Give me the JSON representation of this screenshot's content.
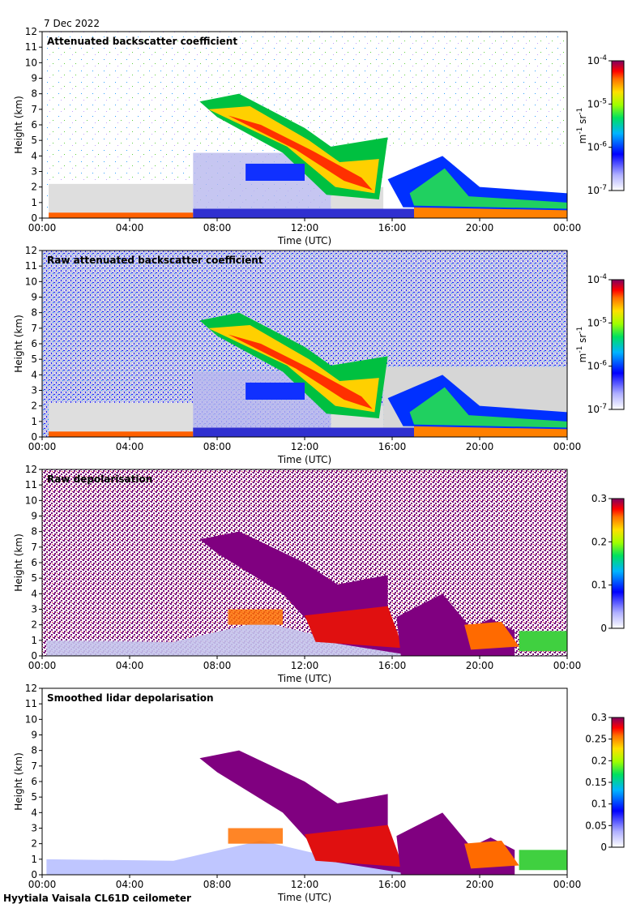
{
  "date_label": "7 Dec 2022",
  "footer_label": "Hyytiala Vaisala CL61D ceilometer",
  "chart_data": [
    {
      "type": "heatmap",
      "title": "Attenuated backscatter coefficient",
      "xlabel": "Time (UTC)",
      "ylabel": "Height (km)",
      "xticks": [
        "00:00",
        "04:00",
        "08:00",
        "12:00",
        "16:00",
        "20:00",
        "00:00"
      ],
      "xlim": [
        0,
        24
      ],
      "yticks": [
        0,
        1,
        2,
        3,
        4,
        5,
        6,
        7,
        8,
        9,
        10,
        11,
        12
      ],
      "ylim": [
        0,
        12
      ],
      "colorbar": {
        "scale": "log",
        "ticks": [
          {
            "base": "10",
            "exp": "-4"
          },
          {
            "base": "10",
            "exp": "-5"
          },
          {
            "base": "10",
            "exp": "-6"
          },
          {
            "base": "10",
            "exp": "-7"
          }
        ],
        "unit": "m^-1 sr^-1"
      }
    },
    {
      "type": "heatmap",
      "title": "Raw attenuated backscatter coefficient",
      "xlabel": "Time (UTC)",
      "ylabel": "Height (km)",
      "xticks": [
        "00:00",
        "04:00",
        "08:00",
        "12:00",
        "16:00",
        "20:00",
        "00:00"
      ],
      "xlim": [
        0,
        24
      ],
      "yticks": [
        0,
        1,
        2,
        3,
        4,
        5,
        6,
        7,
        8,
        9,
        10,
        11,
        12
      ],
      "ylim": [
        0,
        12
      ],
      "colorbar": {
        "scale": "log",
        "ticks": [
          {
            "base": "10",
            "exp": "-4"
          },
          {
            "base": "10",
            "exp": "-5"
          },
          {
            "base": "10",
            "exp": "-6"
          },
          {
            "base": "10",
            "exp": "-7"
          }
        ],
        "unit": "m^-1 sr^-1"
      }
    },
    {
      "type": "heatmap",
      "title": "Raw depolarisation",
      "xlabel": "Time (UTC)",
      "ylabel": "Height (km)",
      "xticks": [
        "00:00",
        "04:00",
        "08:00",
        "12:00",
        "16:00",
        "20:00",
        "00:00"
      ],
      "xlim": [
        0,
        24
      ],
      "yticks": [
        0,
        1,
        2,
        3,
        4,
        5,
        6,
        7,
        8,
        9,
        10,
        11,
        12
      ],
      "ylim": [
        0,
        12
      ],
      "colorbar": {
        "scale": "linear",
        "range": [
          0,
          0.3
        ],
        "ticks": [
          "0.3",
          "0.2",
          "0.1",
          "0"
        ],
        "unit": ""
      }
    },
    {
      "type": "heatmap",
      "title": "Smoothed lidar depolarisation",
      "xlabel": "Time (UTC)",
      "ylabel": "Height (km)",
      "xticks": [
        "00:00",
        "04:00",
        "08:00",
        "12:00",
        "16:00",
        "20:00",
        "00:00"
      ],
      "xlim": [
        0,
        24
      ],
      "yticks": [
        0,
        1,
        2,
        3,
        4,
        5,
        6,
        7,
        8,
        9,
        10,
        11,
        12
      ],
      "ylim": [
        0,
        12
      ],
      "colorbar": {
        "scale": "linear",
        "range": [
          0,
          0.3
        ],
        "ticks": [
          "0.3",
          "0.25",
          "0.2",
          "0.15",
          "0.1",
          "0.05",
          "0"
        ],
        "unit": ""
      }
    }
  ]
}
